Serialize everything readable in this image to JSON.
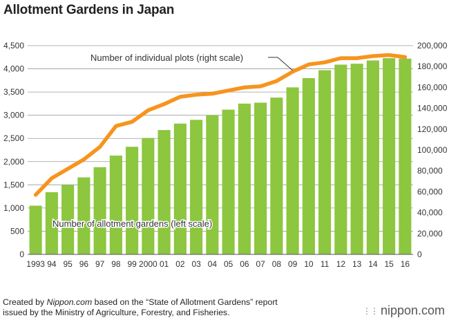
{
  "title": "Allotment Gardens in Japan",
  "footer": {
    "line1_prefix": "Created by ",
    "line1_source": "Nippon.com",
    "line1_suffix": " based on the “State of Allotment Gardens” report",
    "line2": "issued by the Ministry of Agriculture, Forestry, and Fisheries."
  },
  "brand": {
    "name": "nippon.com",
    "mark_icon": "dot-grid-icon"
  },
  "colors": {
    "bar": "#8dc63f",
    "line": "#f7941d",
    "grid": "#9a9a9a"
  },
  "chart_data": {
    "type": "bar",
    "title": "Allotment Gardens in Japan",
    "categories": [
      "1993",
      "94",
      "95",
      "96",
      "97",
      "98",
      "99",
      "2000",
      "01",
      "02",
      "03",
      "04",
      "05",
      "06",
      "07",
      "08",
      "09",
      "10",
      "11",
      "12",
      "13",
      "14",
      "15",
      "16"
    ],
    "series": [
      {
        "name": "Number of allotment gardens (left scale)",
        "type": "bar",
        "axis": "left",
        "values": [
          1050,
          1340,
          1500,
          1660,
          1880,
          2130,
          2320,
          2510,
          2680,
          2820,
          2900,
          3000,
          3120,
          3250,
          3270,
          3380,
          3600,
          3800,
          3970,
          4090,
          4110,
          4180,
          4230,
          4220
        ]
      },
      {
        "name": "Number of individual plots (right scale)",
        "type": "line",
        "axis": "right",
        "values": [
          57000,
          73000,
          82000,
          91000,
          103000,
          123000,
          127000,
          138000,
          144000,
          151000,
          153000,
          154000,
          157000,
          160000,
          161000,
          166000,
          175000,
          182000,
          184000,
          188000,
          188000,
          190000,
          191000,
          189000
        ]
      }
    ],
    "y_left": {
      "min": 0,
      "max": 4500,
      "ticks": [
        "0",
        "500",
        "1,000",
        "1,500",
        "2,000",
        "2,500",
        "3,000",
        "3,500",
        "4,000",
        "4,500"
      ]
    },
    "y_right": {
      "min": 0,
      "max": 200000,
      "ticks": [
        "0",
        "20,000",
        "40,000",
        "60,000",
        "80,000",
        "100,000",
        "120,000",
        "140,000",
        "160,000",
        "180,000",
        "200,000"
      ]
    },
    "grid": true
  }
}
